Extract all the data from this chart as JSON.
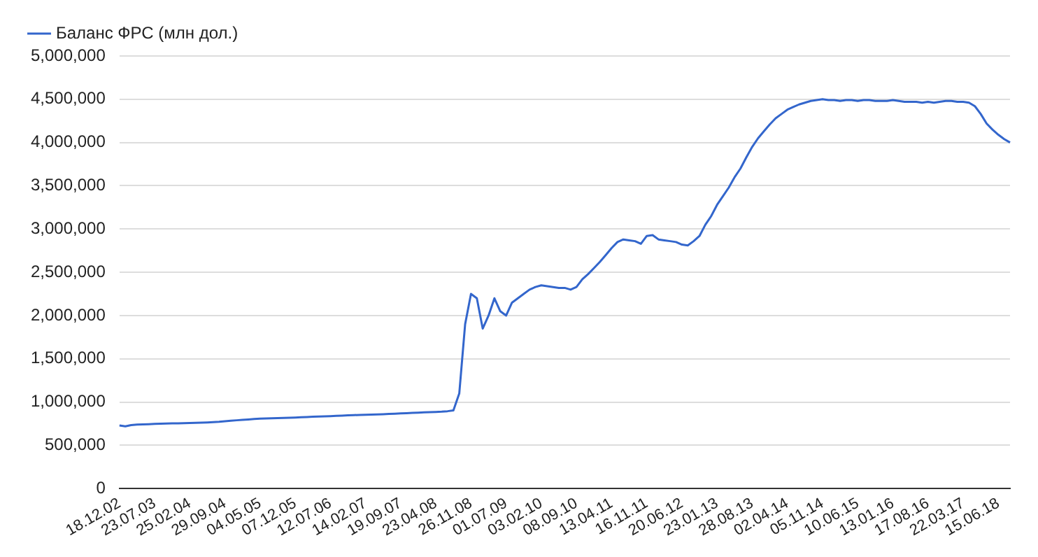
{
  "chart_data": {
    "type": "line",
    "legend": "top left",
    "grid": "y",
    "marker": "none",
    "line_style": "solid",
    "ylim": [
      0,
      5000000
    ],
    "yticks": [
      {
        "value": 0,
        "label": "0"
      },
      {
        "value": 500000,
        "label": "500,000"
      },
      {
        "value": 1000000,
        "label": "1,000,000"
      },
      {
        "value": 1500000,
        "label": "1,500,000"
      },
      {
        "value": 2000000,
        "label": "2,000,000"
      },
      {
        "value": 2500000,
        "label": "2,500,000"
      },
      {
        "value": 3000000,
        "label": "3,000,000"
      },
      {
        "value": 3500000,
        "label": "3,500,000"
      },
      {
        "value": 4000000,
        "label": "4,000,000"
      },
      {
        "value": 4500000,
        "label": "4,500,000"
      },
      {
        "value": 5000000,
        "label": "5,000,000"
      }
    ],
    "categories": [
      "18.12.02",
      null,
      null,
      null,
      null,
      null,
      "23.07.03",
      null,
      null,
      null,
      null,
      null,
      "25.02.04",
      null,
      null,
      null,
      null,
      null,
      "29.09.04",
      null,
      null,
      null,
      null,
      null,
      "04.05.05",
      null,
      null,
      null,
      null,
      null,
      "07.12.05",
      null,
      null,
      null,
      null,
      null,
      "12.07.06",
      null,
      null,
      null,
      null,
      null,
      "14.02.07",
      null,
      null,
      null,
      null,
      null,
      "19.09.07",
      null,
      null,
      null,
      null,
      null,
      "23.04.08",
      null,
      null,
      null,
      null,
      null,
      "26.11.08",
      null,
      null,
      null,
      null,
      null,
      "01.07.09",
      null,
      null,
      null,
      null,
      null,
      "03.02.10",
      null,
      null,
      null,
      null,
      null,
      "08.09.10",
      null,
      null,
      null,
      null,
      null,
      "13.04.11",
      null,
      null,
      null,
      null,
      null,
      "16.11.11",
      null,
      null,
      null,
      null,
      null,
      "20.06.12",
      null,
      null,
      null,
      null,
      null,
      "23.01.13",
      null,
      null,
      null,
      null,
      null,
      "28.08.13",
      null,
      null,
      null,
      null,
      null,
      "02.04.14",
      null,
      null,
      null,
      null,
      null,
      "05.11.14",
      null,
      null,
      null,
      null,
      null,
      "10.06.15",
      null,
      null,
      null,
      null,
      null,
      "13.01.16",
      null,
      null,
      null,
      null,
      null,
      "17.08.16",
      null,
      null,
      null,
      null,
      null,
      "22.03.17",
      null,
      null,
      null,
      null,
      null,
      "15.06.18",
      null,
      null
    ],
    "series": [
      {
        "name": "Баланс ФРС (млн дол.)",
        "color": "#3366cc",
        "values": [
          730000,
          720000,
          735000,
          740000,
          742000,
          745000,
          748000,
          750000,
          752000,
          754000,
          755000,
          757000,
          758000,
          760000,
          762000,
          765000,
          768000,
          772000,
          778000,
          784000,
          790000,
          795000,
          800000,
          805000,
          810000,
          812000,
          814000,
          816000,
          818000,
          820000,
          822000,
          825000,
          828000,
          831000,
          833000,
          835000,
          838000,
          841000,
          844000,
          847000,
          850000,
          852000,
          854000,
          856000,
          858000,
          860000,
          863000,
          866000,
          869000,
          872000,
          875000,
          878000,
          881000,
          884000,
          887000,
          890000,
          895000,
          905000,
          1100000,
          1900000,
          2250000,
          2200000,
          1850000,
          2000000,
          2200000,
          2050000,
          2000000,
          2150000,
          2200000,
          2250000,
          2300000,
          2330000,
          2350000,
          2340000,
          2330000,
          2320000,
          2320000,
          2300000,
          2330000,
          2420000,
          2480000,
          2550000,
          2620000,
          2700000,
          2780000,
          2850000,
          2880000,
          2870000,
          2860000,
          2830000,
          2920000,
          2930000,
          2880000,
          2870000,
          2860000,
          2850000,
          2820000,
          2810000,
          2860000,
          2920000,
          3050000,
          3150000,
          3280000,
          3380000,
          3480000,
          3600000,
          3700000,
          3830000,
          3950000,
          4050000,
          4130000,
          4210000,
          4280000,
          4330000,
          4380000,
          4410000,
          4440000,
          4460000,
          4480000,
          4490000,
          4500000,
          4490000,
          4490000,
          4480000,
          4490000,
          4490000,
          4480000,
          4490000,
          4490000,
          4480000,
          4480000,
          4480000,
          4490000,
          4480000,
          4470000,
          4470000,
          4470000,
          4460000,
          4470000,
          4460000,
          4470000,
          4480000,
          4480000,
          4470000,
          4470000,
          4460000,
          4420000,
          4330000,
          4220000,
          4150000,
          4090000,
          4040000,
          4000000
        ]
      }
    ]
  }
}
